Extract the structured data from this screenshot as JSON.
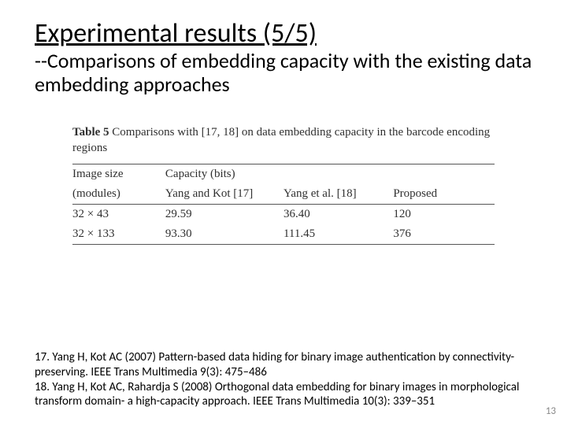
{
  "title": "Experimental results (5/5)",
  "subtitle": "--Comparisons of embedding capacity with the existing data embedding approaches",
  "table": {
    "caption_label": "Table 5",
    "caption_text": "Comparisons with [17, 18] on data embedding capacity in the barcode encoding regions",
    "header_row1": {
      "size": "Image size",
      "capacity": "Capacity (bits)"
    },
    "header_row2": {
      "modules": "(modules)",
      "yk": "Yang and Kot [17]",
      "ye": "Yang et al. [18]",
      "proposed": "Proposed"
    },
    "rows": [
      {
        "size": "32 × 43",
        "yk": "29.59",
        "ye": "36.40",
        "proposed": "120"
      },
      {
        "size": "32 × 133",
        "yk": "93.30",
        "ye": "111.45",
        "proposed": "376"
      }
    ]
  },
  "refs": {
    "r17": "17. Yang H, Kot AC (2007) Pattern-based data hiding for binary image authentication by connectivity-preserving. IEEE Trans Multimedia 9(3): 475–486",
    "r18": "18. Yang H, Kot AC, Rahardja S (2008) Orthogonal data embedding for binary images in morphological transform domain- a high-capacity approach. IEEE Trans Multimedia 10(3): 339–351"
  },
  "page_number": "13"
}
